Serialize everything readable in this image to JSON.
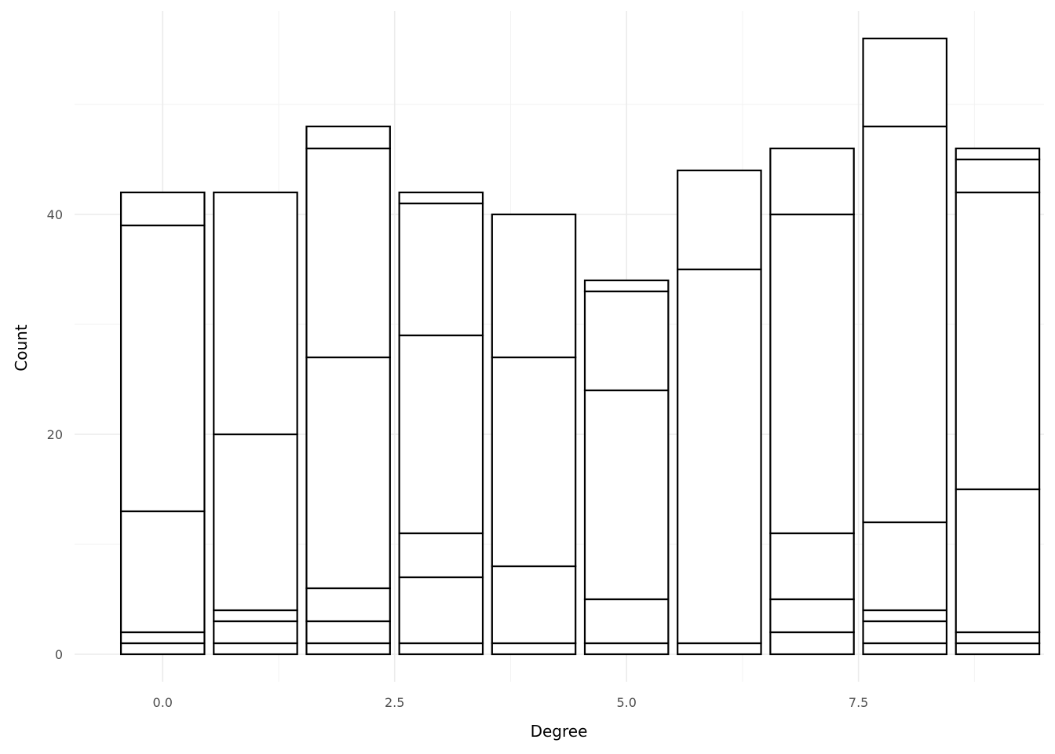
{
  "chart_data": {
    "type": "bar",
    "stacked": true,
    "title": "",
    "xlabel": "Degree",
    "ylabel": "Count",
    "x": [
      0,
      1,
      2,
      3,
      4,
      5,
      6,
      7,
      8,
      9
    ],
    "stack_boundaries": [
      [
        1,
        2,
        13,
        39,
        42
      ],
      [
        1,
        3,
        4,
        20,
        42
      ],
      [
        1,
        3,
        6,
        27,
        46,
        48
      ],
      [
        1,
        7,
        11,
        29,
        41,
        42
      ],
      [
        1,
        8,
        27,
        40
      ],
      [
        1,
        5,
        24,
        33,
        34
      ],
      [
        1,
        35,
        44
      ],
      [
        2,
        5,
        11,
        40,
        46
      ],
      [
        1,
        3,
        4,
        12,
        48,
        56
      ],
      [
        1,
        2,
        15,
        42,
        45,
        46
      ]
    ],
    "xlim": [
      -0.95,
      9.5
    ],
    "ylim": [
      -2.5,
      58.5
    ],
    "x_ticks": [
      0,
      2.5,
      5,
      7.5
    ],
    "x_tick_labels": [
      "0.0",
      "2.5",
      "5.0",
      "7.5"
    ],
    "y_ticks": [
      0,
      20,
      40
    ],
    "y_tick_labels": [
      "0",
      "20",
      "40"
    ],
    "grid": true,
    "colors": {
      "fill": "#ffffff",
      "outline": "#000000",
      "grid": "#ebebeb"
    }
  }
}
